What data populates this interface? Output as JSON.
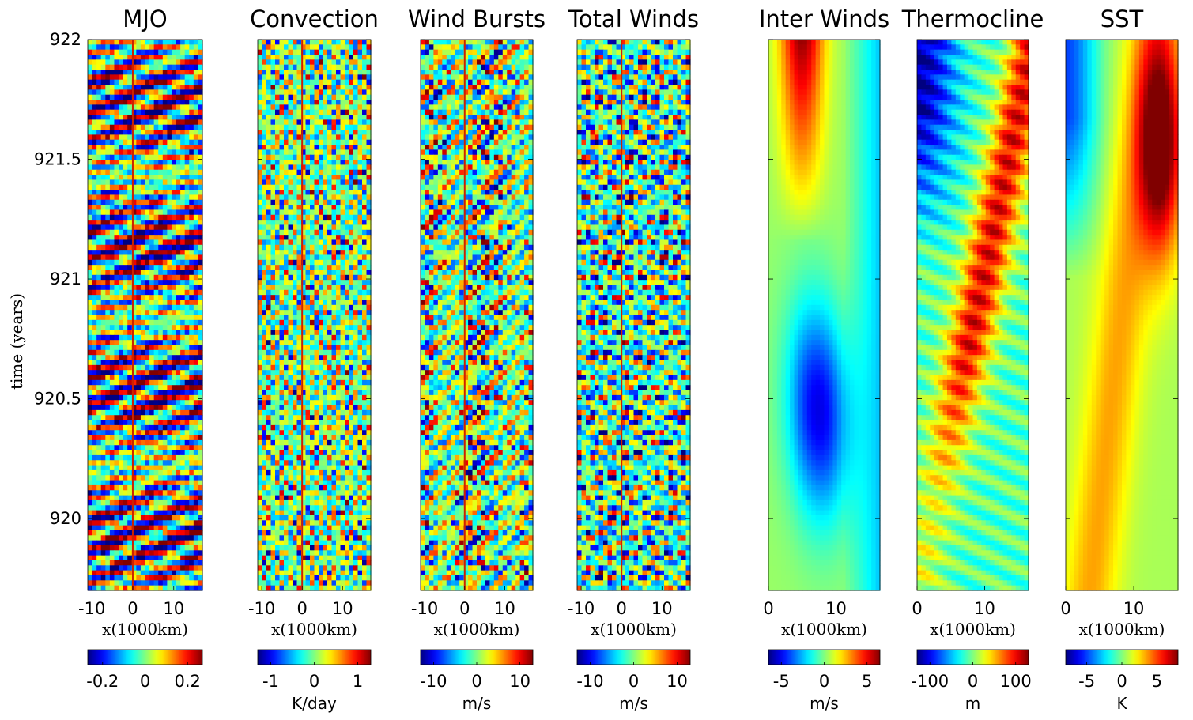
{
  "chart_data": [
    {
      "type": "heatmap",
      "title": "MJO",
      "xlabel": "x(1000km)",
      "ylabel": "time (years)",
      "xlim": [
        -11,
        17
      ],
      "ylim": [
        919.7,
        922
      ],
      "x_ticks": [
        "-10",
        "0",
        "10"
      ],
      "y_ticks": [
        "922",
        "921.5",
        "921",
        "920.5",
        "920"
      ],
      "colorbar": {
        "ticks": [
          "-0.2",
          "0",
          "0.2"
        ],
        "unit": "",
        "range": [
          -0.27,
          0.27
        ]
      },
      "colormap": "jet",
      "vertical_line_x": 0,
      "pattern": "fine eastward-tilted oscillating bands, strongest near 920 and 920.5"
    },
    {
      "type": "heatmap",
      "title": "Convection",
      "xlabel": "x(1000km)",
      "xlim": [
        -11,
        17
      ],
      "ylim": [
        919.7,
        922
      ],
      "x_ticks": [
        "-10",
        "0",
        "10"
      ],
      "colorbar": {
        "ticks": [
          "-1",
          "0",
          "1"
        ],
        "unit": "K/day",
        "range": [
          -1.3,
          1.3
        ]
      },
      "colormap": "jet",
      "vertical_line_x": 0,
      "pattern": "small-scale noisy speckle"
    },
    {
      "type": "heatmap",
      "title": "Wind Bursts",
      "xlabel": "x(1000km)",
      "xlim": [
        -11,
        17
      ],
      "ylim": [
        919.7,
        922
      ],
      "x_ticks": [
        "-10",
        "0",
        "10"
      ],
      "colorbar": {
        "ticks": [
          "-10",
          "0",
          "10"
        ],
        "unit": "m/s",
        "range": [
          -13,
          13
        ]
      },
      "colormap": "jet",
      "vertical_line_x": 0,
      "pattern": "intermittent streaks"
    },
    {
      "type": "heatmap",
      "title": "Total Winds",
      "xlabel": "x(1000km)",
      "xlim": [
        -11,
        17
      ],
      "ylim": [
        919.7,
        922
      ],
      "x_ticks": [
        "-10",
        "0",
        "10"
      ],
      "colorbar": {
        "ticks": [
          "-10",
          "0",
          "10"
        ],
        "unit": "m/s",
        "range": [
          -13,
          13
        ]
      },
      "colormap": "jet",
      "vertical_line_x": 0,
      "pattern": "intermittent streaks with weak westward bias"
    },
    {
      "type": "heatmap",
      "title": "Inter Winds",
      "xlabel": "x(1000km)",
      "xlim": [
        0,
        16.5
      ],
      "ylim": [
        919.7,
        922
      ],
      "x_ticks": [
        "0",
        "10"
      ],
      "colorbar": {
        "ticks": [
          "-5",
          "0",
          "5"
        ],
        "unit": "m/s",
        "range": [
          -6.5,
          6.5
        ]
      },
      "colormap": "jet",
      "pattern": "positive (orange) near x=8 after 921.5; strong negative (blue) core near x=10 between 920 and 920.9"
    },
    {
      "type": "heatmap",
      "title": "Thermocline",
      "xlabel": "x(1000km)",
      "xlim": [
        0,
        16.5
      ],
      "ylim": [
        919.7,
        922
      ],
      "x_ticks": [
        "0",
        "10"
      ],
      "colorbar": {
        "ticks": [
          "-100",
          "0",
          "100"
        ],
        "unit": "m",
        "range": [
          -130,
          130
        ]
      },
      "colormap": "jet",
      "pattern": "deep (red) band moving from west near 920.5 to east near 921.4; shallow (blue) in west after 921.3"
    },
    {
      "type": "heatmap",
      "title": "SST",
      "xlabel": "x(1000km)",
      "xlim": [
        0,
        16.5
      ],
      "ylim": [
        919.7,
        922
      ],
      "x_ticks": [
        "0",
        "10"
      ],
      "colorbar": {
        "ticks": [
          "-5",
          "0",
          "5"
        ],
        "unit": "K",
        "range": [
          -8,
          8
        ]
      },
      "colormap": "jet",
      "pattern": "warm anomaly (dark red) in east peaking near 921.5; cool (blue) in west after 921.2"
    }
  ]
}
